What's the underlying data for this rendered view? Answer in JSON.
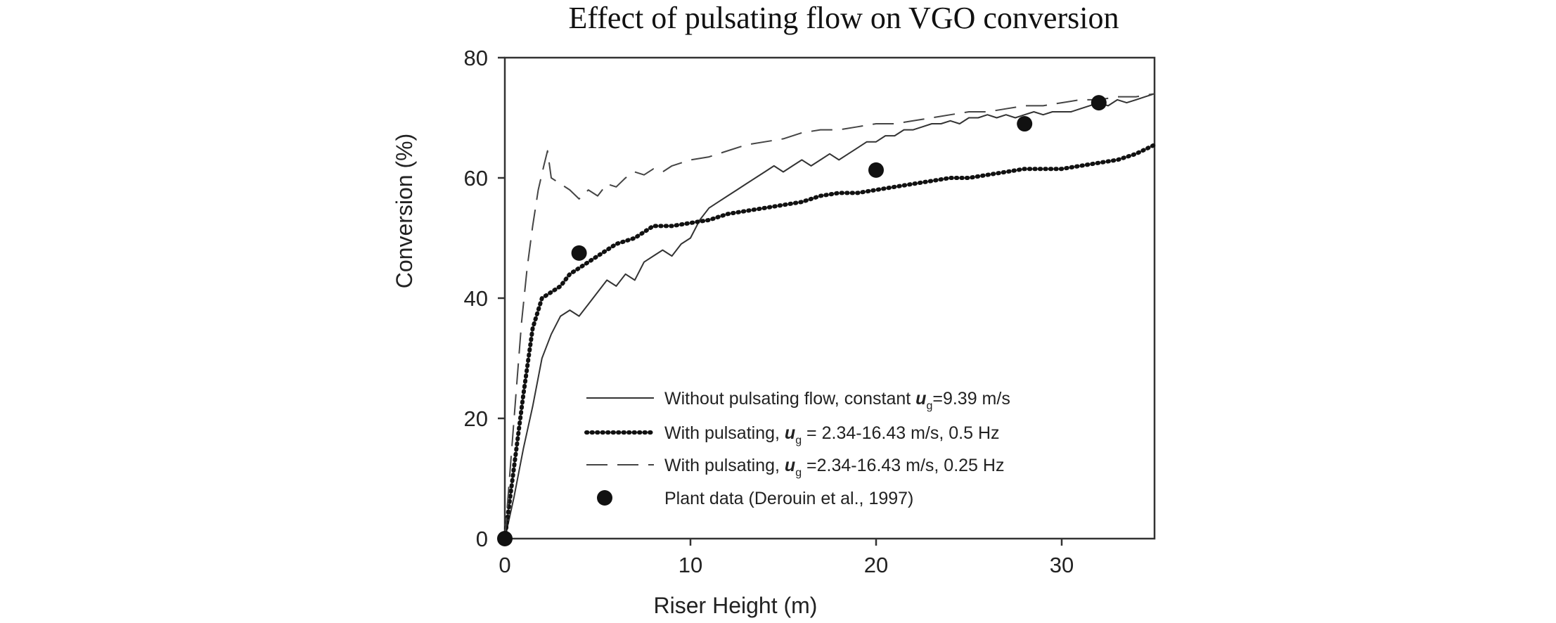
{
  "chart_data": {
    "type": "line",
    "title": "Effect of pulsating flow on VGO conversion",
    "xlabel": "Riser Height (m)",
    "ylabel": "Conversion (%)",
    "xlim": [
      0,
      35
    ],
    "ylim": [
      0,
      80
    ],
    "xticks": [
      "0",
      "10",
      "20",
      "30"
    ],
    "yticks": [
      "0",
      "20",
      "40",
      "60",
      "80"
    ],
    "grid": false,
    "legend_position": "lower-right",
    "series": [
      {
        "name": "Without pulsating flow, constant ug=9.39 m/s",
        "legend_prefix": "Without pulsating flow, constant ",
        "legend_symbol": "u",
        "legend_sub": "g",
        "legend_suffix": "=9.39 m/s",
        "style": "solid",
        "color": "#333333",
        "x": [
          0,
          0.5,
          1,
          1.5,
          2,
          2.5,
          3,
          3.5,
          4,
          4.5,
          5,
          5.5,
          6,
          6.5,
          7,
          7.5,
          8,
          8.5,
          9,
          9.5,
          10,
          10.5,
          11,
          11.5,
          12,
          12.5,
          13,
          13.5,
          14,
          14.5,
          15,
          15.5,
          16,
          16.5,
          17,
          17.5,
          18,
          18.5,
          19,
          19.5,
          20,
          20.5,
          21,
          21.5,
          22,
          22.5,
          23,
          23.5,
          24,
          24.5,
          25,
          25.5,
          26,
          26.5,
          27,
          27.5,
          28,
          28.5,
          29,
          29.5,
          30,
          30.5,
          31,
          31.5,
          32,
          32.5,
          33,
          33.5,
          34,
          34.5,
          35
        ],
        "values": [
          0,
          7,
          15,
          22,
          30,
          34,
          37,
          38,
          37,
          39,
          41,
          43,
          42,
          44,
          43,
          46,
          47,
          48,
          47,
          49,
          50,
          53,
          55,
          56,
          57,
          58,
          59,
          60,
          61,
          62,
          61,
          62,
          63,
          62,
          63,
          64,
          63,
          64,
          65,
          66,
          66,
          67,
          67,
          68,
          68,
          68.5,
          69,
          69,
          69.5,
          69,
          70,
          70,
          70.5,
          70,
          70.5,
          70,
          70.5,
          71,
          70.5,
          71,
          71,
          71,
          71.5,
          72,
          72.5,
          72,
          73,
          72.5,
          73,
          73.5,
          74
        ]
      },
      {
        "name": "With pulsating, ug = 2.34-16.43 m/s, 0.5 Hz",
        "legend_prefix": "With pulsating, ",
        "legend_symbol": "u",
        "legend_sub": "g",
        "legend_suffix": " = 2.34-16.43 m/s, 0.5 Hz",
        "style": "dotted",
        "color": "#111111",
        "x": [
          0,
          0.5,
          1,
          1.5,
          2,
          2.5,
          3,
          3.5,
          4,
          4.5,
          5,
          6,
          7,
          8,
          9,
          10,
          11,
          12,
          13,
          14,
          15,
          16,
          17,
          18,
          19,
          20,
          21,
          22,
          23,
          24,
          25,
          26,
          27,
          28,
          29,
          30,
          31,
          32,
          33,
          34,
          35
        ],
        "values": [
          0,
          12,
          24,
          35,
          40,
          41,
          42,
          44,
          45,
          46,
          47,
          49,
          50,
          52,
          52,
          52.5,
          53,
          54,
          54.5,
          55,
          55.5,
          56,
          57,
          57.5,
          57.5,
          58,
          58.5,
          59,
          59.5,
          60,
          60,
          60.5,
          61,
          61.5,
          61.5,
          61.5,
          62,
          62.5,
          63,
          64,
          65.5
        ]
      },
      {
        "name": "With pulsating, ug =2.34-16.43 m/s, 0.25 Hz",
        "legend_prefix": "With pulsating, ",
        "legend_symbol": "u",
        "legend_sub": "g",
        "legend_suffix": " =2.34-16.43 m/s, 0.25 Hz",
        "style": "dashed",
        "color": "#444444",
        "x": [
          0,
          0.3,
          0.6,
          0.9,
          1.2,
          1.5,
          1.8,
          2.1,
          2.3,
          2.5,
          3,
          3.5,
          4,
          4.5,
          5,
          5.5,
          6,
          6.5,
          7,
          7.5,
          8,
          8.5,
          9,
          10,
          11,
          12,
          13,
          14,
          15,
          16,
          17,
          18,
          19,
          20,
          21,
          22,
          23,
          24,
          25,
          26,
          27,
          28,
          29,
          30,
          31,
          32,
          33,
          34,
          35
        ],
        "values": [
          0,
          12,
          24,
          36,
          45,
          52,
          58,
          62,
          64.5,
          60,
          59,
          58,
          56.5,
          58,
          57,
          59,
          58.5,
          60,
          61,
          60.5,
          61.5,
          61,
          62,
          63,
          63.5,
          64.5,
          65.5,
          66,
          66.5,
          67.5,
          68,
          68,
          68.5,
          69,
          69,
          69.5,
          70,
          70.5,
          71,
          71,
          71.5,
          72,
          72,
          72.5,
          73,
          73,
          73.5,
          73.5,
          74
        ]
      },
      {
        "name": "Plant data (Derouin et al., 1997)",
        "legend_text": "Plant data (Derouin et al., 1997)",
        "style": "markers",
        "color": "#111111",
        "x": [
          0,
          4,
          20,
          28,
          32
        ],
        "values": [
          0,
          47.5,
          61.3,
          69,
          72.5
        ]
      }
    ]
  }
}
